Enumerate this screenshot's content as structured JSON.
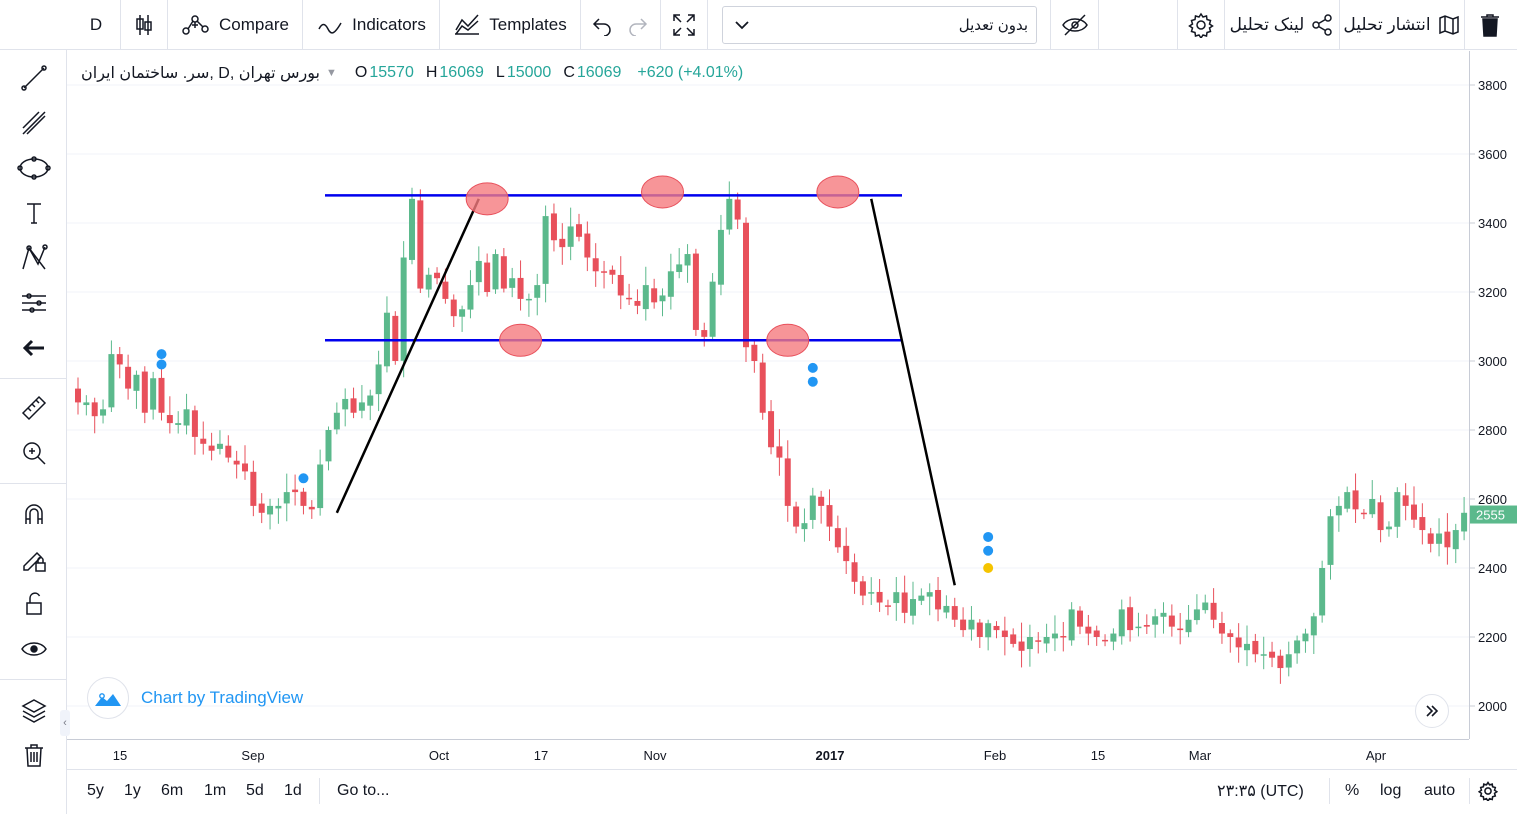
{
  "toolbar": {
    "interval": "D",
    "compare_label": "Compare",
    "indicators_label": "Indicators",
    "templates_label": "Templates",
    "adjust_value": "بدون تعدیل",
    "share_link_label": "لینک تحلیل",
    "publish_label": "انتشار تحلیل"
  },
  "legend": {
    "symbol": "بورس تهران ,D ,سر. ساختمان ایران",
    "open_label": "O",
    "open": "15570",
    "high_label": "H",
    "high": "16069",
    "low_label": "L",
    "low": "15000",
    "close_label": "C",
    "close": "16069",
    "change": "+620 (+4.01%)"
  },
  "watermark": "Chart by TradingView",
  "last_price": "2555",
  "bottom": {
    "ranges": [
      "5y",
      "1y",
      "6m",
      "1m",
      "5d",
      "1d"
    ],
    "goto_label": "Go to...",
    "clock": "۲۳:۳۵ (UTC)",
    "percent_label": "%",
    "log_label": "log",
    "auto_label": "auto"
  },
  "colors": {
    "up": "#5bb98c",
    "down": "#e8505b",
    "accent": "#2196f3",
    "level_line": "#0000ee",
    "marker_fill": "#f57a7e"
  },
  "chart_data": {
    "type": "candlestick",
    "y_ticks": [
      3800,
      3600,
      3400,
      3200,
      3000,
      2800,
      2600,
      2400,
      2200,
      2000
    ],
    "ylim": [
      1900,
      3880
    ],
    "x_ticks": [
      "15",
      "Sep",
      "Oct",
      "17",
      "Nov",
      "2017",
      "Feb",
      "15",
      "Mar",
      "Apr"
    ],
    "close_series": [
      2880,
      2880,
      2840,
      2860,
      3020,
      2990,
      2920,
      2960,
      2850,
      2950,
      2850,
      2820,
      2820,
      2860,
      2780,
      2760,
      2740,
      2760,
      2720,
      2700,
      2680,
      2580,
      2560,
      2580,
      2580,
      2620,
      2620,
      2580,
      2570,
      2700,
      2800,
      2850,
      2890,
      2850,
      2880,
      2900,
      2990,
      3140,
      3000,
      3300,
      3470,
      3210,
      3250,
      3240,
      3180,
      3130,
      3150,
      3220,
      3290,
      3200,
      3310,
      3210,
      3240,
      3180,
      3180,
      3220,
      3420,
      3350,
      3330,
      3390,
      3360,
      3300,
      3260,
      3260,
      3250,
      3190,
      3180,
      3160,
      3220,
      3170,
      3190,
      3260,
      3280,
      3310,
      3090,
      3070,
      3230,
      3380,
      3470,
      3410,
      3040,
      3000,
      2850,
      2750,
      2720,
      2580,
      2520,
      2530,
      2610,
      2580,
      2520,
      2460,
      2420,
      2360,
      2320,
      2330,
      2300,
      2290,
      2330,
      2270,
      2310,
      2320,
      2330,
      2280,
      2290,
      2250,
      2220,
      2250,
      2200,
      2240,
      2220,
      2200,
      2180,
      2160,
      2200,
      2190,
      2200,
      2210,
      2200,
      2280,
      2230,
      2210,
      2200,
      2190,
      2210,
      2280,
      2220,
      2230,
      2230,
      2260,
      2270,
      2230,
      2220,
      2250,
      2280,
      2300,
      2250,
      2210,
      2200,
      2170,
      2180,
      2150,
      2150,
      2140,
      2110,
      2150,
      2190,
      2210,
      2260,
      2400,
      2550,
      2580,
      2620,
      2570,
      2560,
      2600,
      2510,
      2520,
      2620,
      2580,
      2540,
      2510,
      2470,
      2500,
      2460,
      2510,
      2560
    ],
    "levels": [
      3480,
      3060
    ],
    "trendlines": [
      [
        {
          "i": 31,
          "v": 2560
        },
        {
          "i": 48,
          "v": 3470
        }
      ],
      [
        {
          "i": 95,
          "v": 3470
        },
        {
          "i": 105,
          "v": 2350
        }
      ]
    ],
    "pattern_marks": [
      {
        "i": 49,
        "v": 3470
      },
      {
        "i": 53,
        "v": 3060
      },
      {
        "i": 70,
        "v": 3490
      },
      {
        "i": 85,
        "v": 3060
      },
      {
        "i": 91,
        "v": 3490
      }
    ],
    "signals": [
      {
        "i": 10,
        "v": 3020,
        "color": "#2196f3"
      },
      {
        "i": 10,
        "v": 2990,
        "color": "#2196f3"
      },
      {
        "i": 27,
        "v": 2660,
        "color": "#2196f3"
      },
      {
        "i": 88,
        "v": 2980,
        "color": "#2196f3"
      },
      {
        "i": 88,
        "v": 2940,
        "color": "#2196f3"
      },
      {
        "i": 109,
        "v": 2490,
        "color": "#2196f3"
      },
      {
        "i": 109,
        "v": 2450,
        "color": "#2196f3"
      },
      {
        "i": 109,
        "v": 2400,
        "color": "#f5c400"
      }
    ]
  }
}
